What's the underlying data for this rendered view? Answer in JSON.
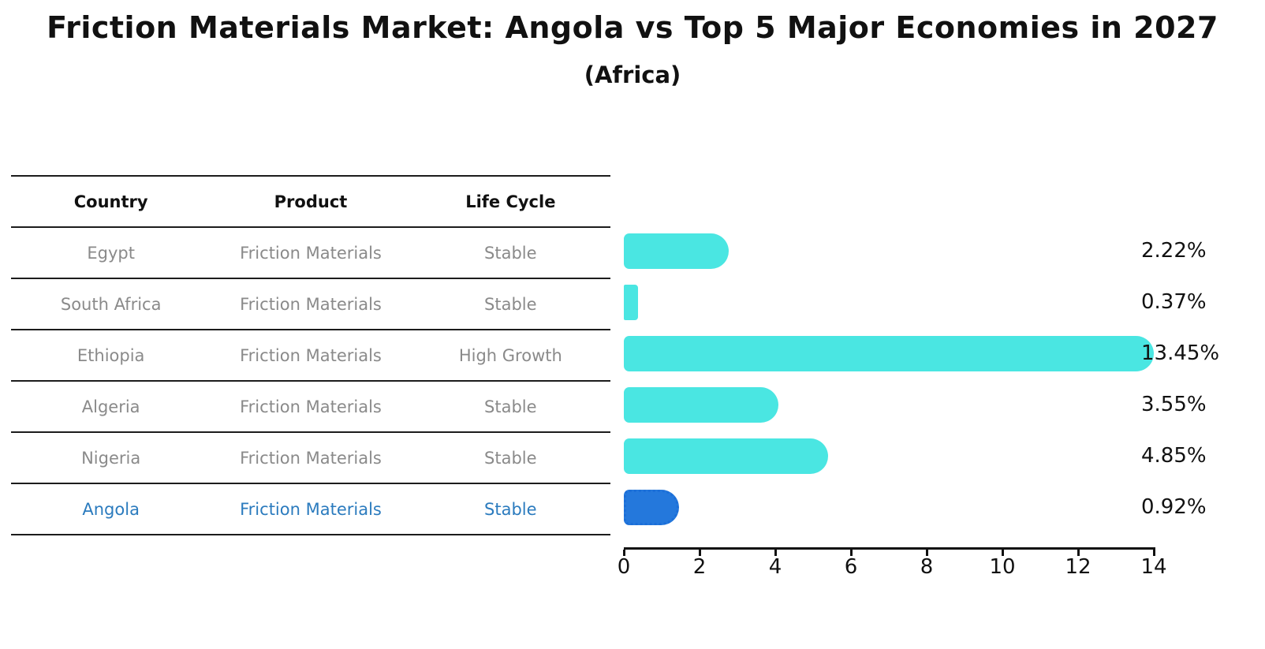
{
  "title": "Friction Materials Market: Angola vs Top 5 Major Economies in 2027",
  "subtitle": "(Africa)",
  "table": {
    "headers": [
      "Country",
      "Product",
      "Life Cycle"
    ],
    "rows": [
      {
        "country": "Egypt",
        "product": "Friction Materials",
        "life_cycle": "Stable"
      },
      {
        "country": "South Africa",
        "product": "Friction Materials",
        "life_cycle": "Stable"
      },
      {
        "country": "Ethiopia",
        "product": "Friction Materials",
        "life_cycle": "High Growth"
      },
      {
        "country": "Algeria",
        "product": "Friction Materials",
        "life_cycle": "Stable"
      },
      {
        "country": "Nigeria",
        "product": "Friction Materials",
        "life_cycle": "Stable"
      },
      {
        "country": "Angola",
        "product": "Friction Materials",
        "life_cycle": "Stable"
      }
    ]
  },
  "chart_data": {
    "type": "bar",
    "orientation": "horizontal",
    "title": "Friction Materials Market: Angola vs Top 5 Major Economies in 2027",
    "subtitle": "(Africa)",
    "categories": [
      "Egypt",
      "South Africa",
      "Ethiopia",
      "Algeria",
      "Nigeria",
      "Angola"
    ],
    "values": [
      2.22,
      0.37,
      13.45,
      3.55,
      4.85,
      0.92
    ],
    "value_labels": [
      "2.22%",
      "0.37%",
      "13.45%",
      "3.55%",
      "4.85%",
      "0.92%"
    ],
    "unit": "%",
    "xlim": [
      0,
      14
    ],
    "x_ticks": [
      "0",
      "2",
      "4",
      "6",
      "8",
      "10",
      "12",
      "14"
    ],
    "grid": false,
    "legend": "none",
    "bar_color": "#4AE6E2",
    "highlight_index": 5,
    "highlight_color": "#2478DC",
    "highlight_border_color": "#1b6ed8",
    "highlight_text_color": "#2b7bbe"
  }
}
